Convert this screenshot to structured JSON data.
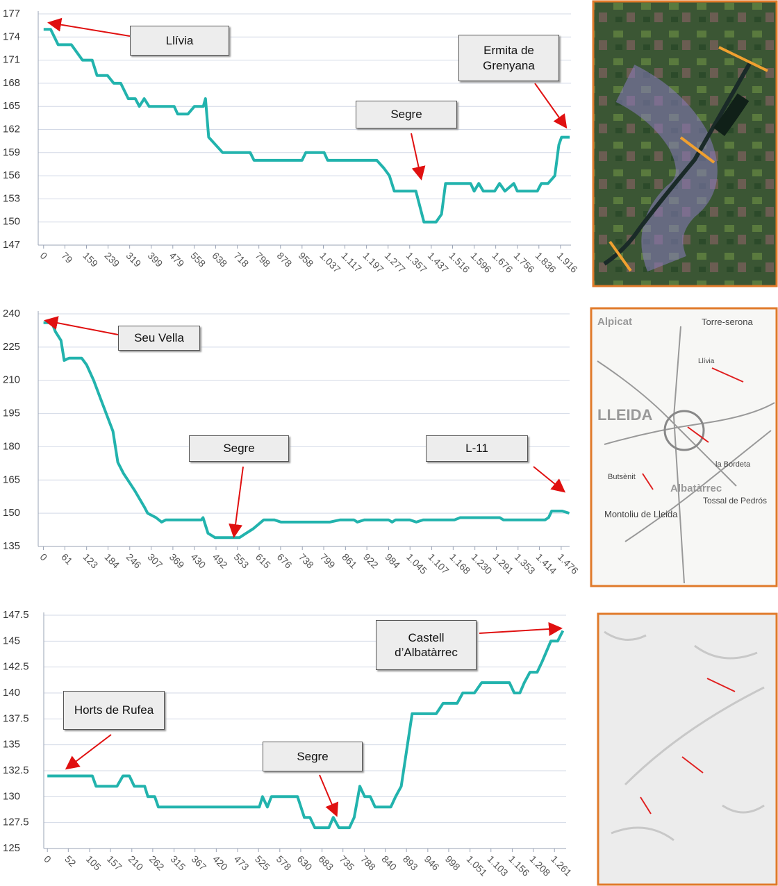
{
  "chart_data": [
    {
      "type": "line",
      "color": "#22b3ad",
      "grid": true,
      "xlim": [
        -20,
        1955
      ],
      "ylim": [
        147,
        177
      ],
      "yticks": [
        147,
        150,
        153,
        156,
        159,
        162,
        165,
        168,
        171,
        174,
        177
      ],
      "xticks": [
        0,
        79,
        159,
        239,
        319,
        399,
        479,
        558,
        638,
        718,
        798,
        878,
        958,
        {
          "value": 1037,
          "label": "1.037"
        },
        {
          "value": 1117,
          "label": "1.117"
        },
        {
          "value": 1197,
          "label": "1.197"
        },
        {
          "value": 1277,
          "label": "1.277"
        },
        {
          "value": 1357,
          "label": "1.357"
        },
        {
          "value": 1437,
          "label": "1.437"
        },
        {
          "value": 1516,
          "label": "1.516"
        },
        {
          "value": 1596,
          "label": "1.596"
        },
        {
          "value": 1676,
          "label": "1.676"
        },
        {
          "value": 1756,
          "label": "1.756"
        },
        {
          "value": 1836,
          "label": "1.836"
        },
        {
          "value": 1916,
          "label": "1.916"
        }
      ],
      "x": [
        0,
        26,
        54,
        103,
        144,
        180,
        198,
        237,
        260,
        286,
        314,
        340,
        355,
        373,
        391,
        484,
        497,
        535,
        559,
        592,
        600,
        612,
        664,
        766,
        780,
        958,
        972,
        1040,
        1053,
        1235,
        1261,
        1282,
        1300,
        1380,
        1410,
        1455,
        1475,
        1490,
        1583,
        1596,
        1613,
        1630,
        1672,
        1690,
        1710,
        1743,
        1756,
        1830,
        1845,
        1870,
        1895,
        1910,
        1920,
        1950
      ],
      "values": [
        175,
        175,
        173,
        173,
        171,
        171,
        169,
        169,
        168,
        168,
        166,
        166,
        165,
        166,
        165,
        165,
        164,
        164,
        165,
        165,
        166,
        161,
        159,
        159,
        158,
        158,
        159,
        159,
        158,
        158,
        157,
        156,
        154,
        154,
        150,
        150,
        151,
        155,
        155,
        154,
        155,
        154,
        154,
        155,
        154,
        155,
        154,
        154,
        155,
        155,
        156,
        160,
        161,
        161
      ],
      "annotations": [
        {
          "text": "Llívia"
        },
        {
          "text": "Ermita de Grenyana"
        },
        {
          "text": "Segre"
        }
      ]
    },
    {
      "type": "line",
      "color": "#22b3ad",
      "grid": true,
      "xlim": [
        -15,
        1500
      ],
      "ylim": [
        135,
        240
      ],
      "yticks": [
        135,
        150,
        165,
        180,
        195,
        210,
        225,
        240
      ],
      "xticks": [
        0,
        61,
        123,
        184,
        246,
        307,
        369,
        430,
        492,
        553,
        615,
        676,
        738,
        799,
        861,
        922,
        984,
        {
          "value": 1045,
          "label": "1.045"
        },
        {
          "value": 1107,
          "label": "1.107"
        },
        {
          "value": 1168,
          "label": "1.168"
        },
        {
          "value": 1230,
          "label": "1.230"
        },
        {
          "value": 1291,
          "label": "1.291"
        },
        {
          "value": 1353,
          "label": "1.353"
        },
        {
          "value": 1414,
          "label": "1.414"
        },
        {
          "value": 1476,
          "label": "1.476"
        }
      ],
      "x": [
        0,
        24,
        34,
        50,
        59,
        73,
        109,
        123,
        143,
        162,
        198,
        212,
        228,
        261,
        287,
        297,
        321,
        337,
        349,
        450,
        455,
        469,
        489,
        559,
        578,
        598,
        628,
        658,
        677,
        816,
        846,
        885,
        895,
        915,
        984,
        994,
        1004,
        1044,
        1063,
        1083,
        1172,
        1188,
        1301,
        1311,
        1430,
        1440,
        1449,
        1479,
        1499
      ],
      "values": [
        236,
        236,
        232,
        228,
        219,
        220,
        220,
        217,
        210,
        202,
        187,
        173,
        168,
        160,
        153,
        150,
        148,
        146,
        147,
        147,
        148,
        141,
        139,
        139,
        141,
        143,
        147,
        147,
        146,
        146,
        147,
        147,
        146,
        147,
        147,
        146,
        147,
        147,
        146,
        147,
        147,
        148,
        148,
        147,
        147,
        148,
        151,
        151,
        150
      ],
      "annotations": [
        {
          "text": "Seu Vella"
        },
        {
          "text": "Segre"
        },
        {
          "text": "L-11"
        }
      ]
    },
    {
      "type": "line",
      "color": "#22b3ad",
      "grid": true,
      "xlim": [
        -9,
        1290
      ],
      "ylim": [
        125,
        147.5
      ],
      "yticks": [
        125,
        127.5,
        130,
        132.5,
        135,
        137.5,
        140,
        142.5,
        145,
        147.5
      ],
      "xticks": [
        0,
        52,
        105,
        157,
        210,
        262,
        315,
        367,
        420,
        473,
        525,
        578,
        630,
        683,
        735,
        788,
        840,
        893,
        946,
        998,
        {
          "value": 1051,
          "label": "1.051"
        },
        {
          "value": 1103,
          "label": "1.103"
        },
        {
          "value": 1156,
          "label": "1.156"
        },
        {
          "value": 1208,
          "label": "1.208"
        },
        {
          "value": 1261,
          "label": "1.261"
        }
      ],
      "x": [
        0,
        112,
        121,
        173,
        188,
        204,
        216,
        242,
        250,
        267,
        276,
        527,
        535,
        547,
        557,
        622,
        639,
        653,
        665,
        700,
        711,
        725,
        751,
        763,
        777,
        789,
        803,
        815,
        854,
        866,
        880,
        907,
        967,
        984,
        1019,
        1033,
        1062,
        1080,
        1149,
        1161,
        1175,
        1186,
        1200,
        1218,
        1230,
        1252,
        1269,
        1282
      ],
      "values": [
        132,
        132,
        131,
        131,
        132,
        132,
        131,
        131,
        130,
        130,
        129,
        129,
        130,
        129,
        130,
        130,
        128,
        128,
        127,
        127,
        128,
        127,
        127,
        128,
        131,
        130,
        130,
        129,
        129,
        130,
        131,
        138,
        138,
        139,
        139,
        140,
        140,
        141,
        141,
        140,
        140,
        141,
        142,
        142,
        143,
        145,
        145,
        146
      ],
      "annotations": [
        {
          "text": "Castell d’Albatàrrec"
        },
        {
          "text": "Horts de Rufea"
        },
        {
          "text": "Segre"
        }
      ]
    }
  ],
  "maps": {
    "topo_labels": [
      "Alpicat",
      "Torre-serona",
      "Llívia",
      "LLEIDA",
      "Albatàrrec",
      "Butsènit",
      "la Bordeta",
      "Montoliu de Lleida",
      "Tossal de Pedrós"
    ]
  }
}
